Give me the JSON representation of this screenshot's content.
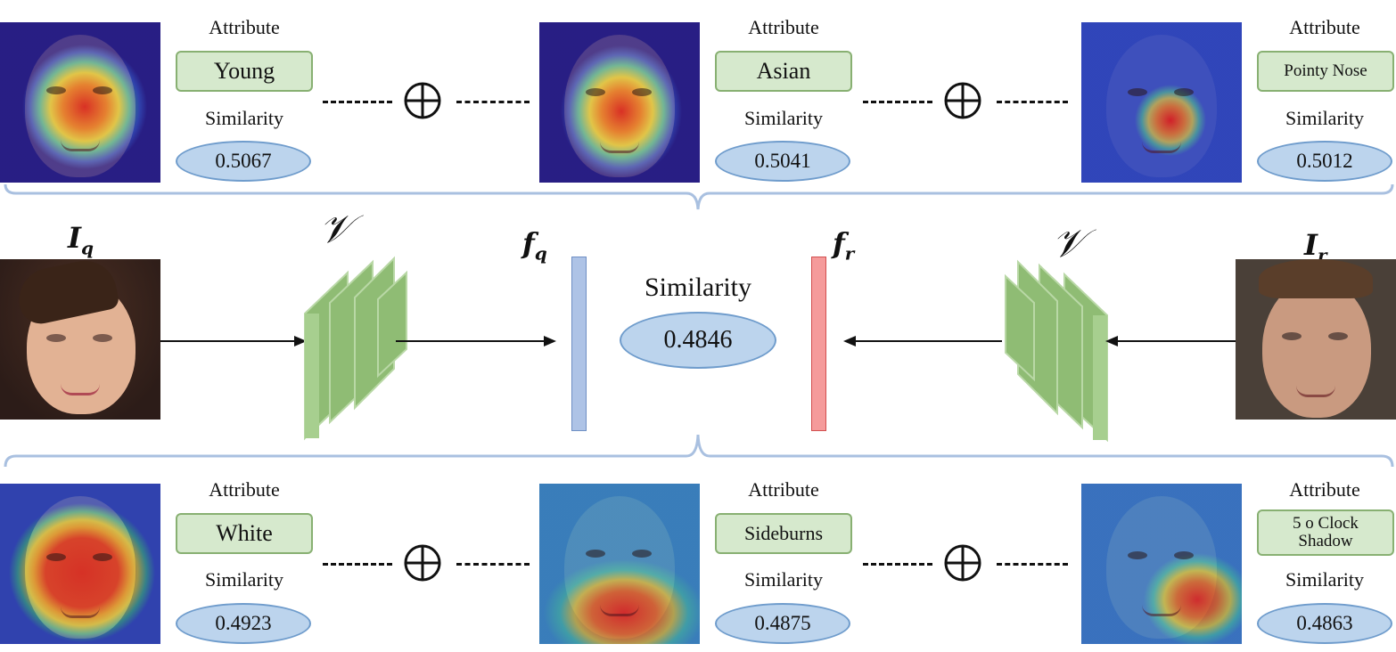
{
  "top_row": [
    {
      "attribute_label": "Attribute",
      "attribute": "Young",
      "similarity_label": "Similarity",
      "similarity": "0.5067",
      "heatmap": "red-center"
    },
    {
      "attribute_label": "Attribute",
      "attribute": "Asian",
      "similarity_label": "Similarity",
      "similarity": "0.5041",
      "heatmap": "red-center"
    },
    {
      "attribute_label": "Attribute",
      "attribute": "Pointy Nose",
      "similarity_label": "Similarity",
      "similarity": "0.5012",
      "heatmap": "red-nose"
    }
  ],
  "bottom_row": [
    {
      "attribute_label": "Attribute",
      "attribute": "White",
      "similarity_label": "Similarity",
      "similarity": "0.4923",
      "heatmap": "red-face"
    },
    {
      "attribute_label": "Attribute",
      "attribute": "Sideburns",
      "similarity_label": "Similarity",
      "similarity": "0.4875",
      "heatmap": "red-lower"
    },
    {
      "attribute_label": "Attribute",
      "attribute": "5 o Clock Shadow",
      "similarity_label": "Similarity",
      "similarity": "0.4863",
      "heatmap": "red-chin"
    }
  ],
  "middle": {
    "query_image_label": "I",
    "query_image_sub": "q",
    "reference_image_label": "I",
    "reference_image_sub": "r",
    "encoder_label": "𝒱",
    "feature_q_label": "f",
    "feature_q_sub": "q",
    "feature_r_label": "f",
    "feature_r_sub": "r",
    "similarity_label": "Similarity",
    "similarity_value": "0.4846"
  },
  "colors": {
    "attribute_fill": "#d6e9cd",
    "attribute_border": "#88b072",
    "similarity_fill": "#bcd4ed",
    "similarity_border": "#6f9ccc",
    "encoder_green": "#8fbc74",
    "feature_q": "#aec3e6",
    "feature_r": "#f59b9b",
    "brace": "#a9c0e0"
  }
}
